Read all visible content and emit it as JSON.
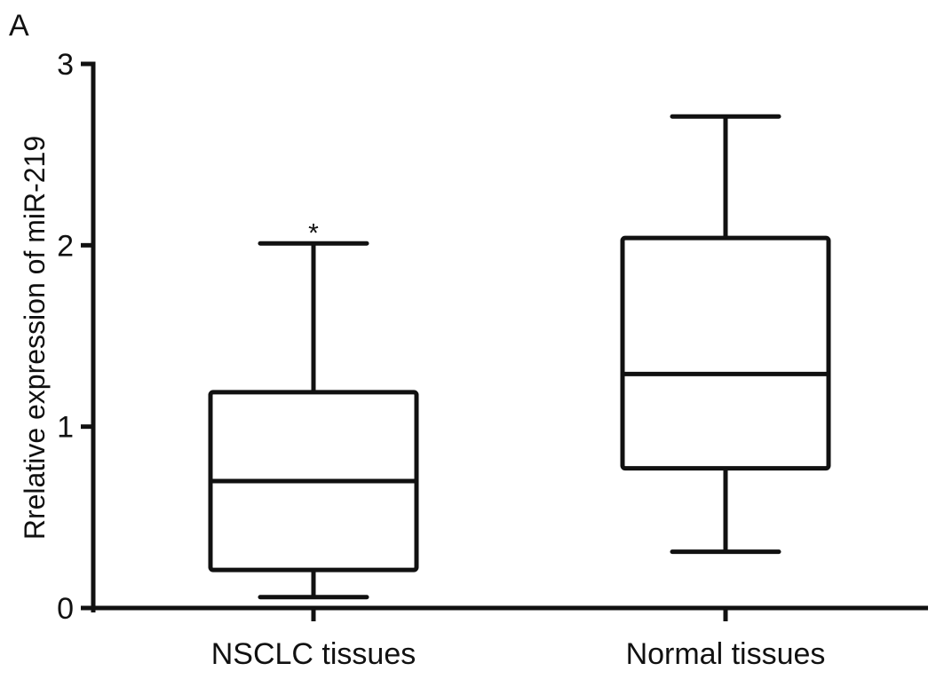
{
  "panel_label": "A",
  "chart_data": {
    "type": "box",
    "title": "",
    "xlabel": "",
    "ylabel": "Rrelative expression of miR-219",
    "ylim": [
      0,
      3
    ],
    "yticks": [
      "0",
      "1",
      "2",
      "3"
    ],
    "grid": false,
    "categories": [
      "NSCLC tissues",
      "Normal tissues"
    ],
    "boxes": [
      {
        "category": "NSCLC tissues",
        "min": 0.06,
        "q1": 0.21,
        "median": 0.7,
        "q3": 1.19,
        "max": 2.01,
        "annotation": "*"
      },
      {
        "category": "Normal tissues",
        "min": 0.31,
        "q1": 0.77,
        "median": 1.29,
        "q3": 2.04,
        "max": 2.71,
        "annotation": ""
      }
    ]
  }
}
